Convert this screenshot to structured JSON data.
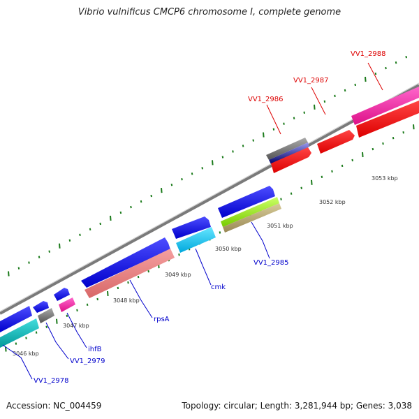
{
  "title": "Vibrio vulnificus CMCP6 chromosome I, complete genome",
  "footer": {
    "accession": "Accession: NC_004459",
    "summary": "Topology: circular; Length: 3,281,944 bp; Genes: 3,038"
  },
  "colors": {
    "backbone": "#888888",
    "tick": "#1a7a1a",
    "forward_label": "#dd0000",
    "reverse_label": "#0000cc"
  },
  "kbp_labels": [
    "3046 kbp",
    "3047 kbp",
    "3048 kbp",
    "3049 kbp",
    "3050 kbp",
    "3051 kbp",
    "3052 kbp",
    "3053 kbp"
  ],
  "gene_labels": [
    "VV1_2978",
    "VV1_2979",
    "ihfB",
    "rpsA",
    "cmk",
    "VV1_2985",
    "VV1_2986",
    "VV1_2987",
    "VV1_2988"
  ]
}
